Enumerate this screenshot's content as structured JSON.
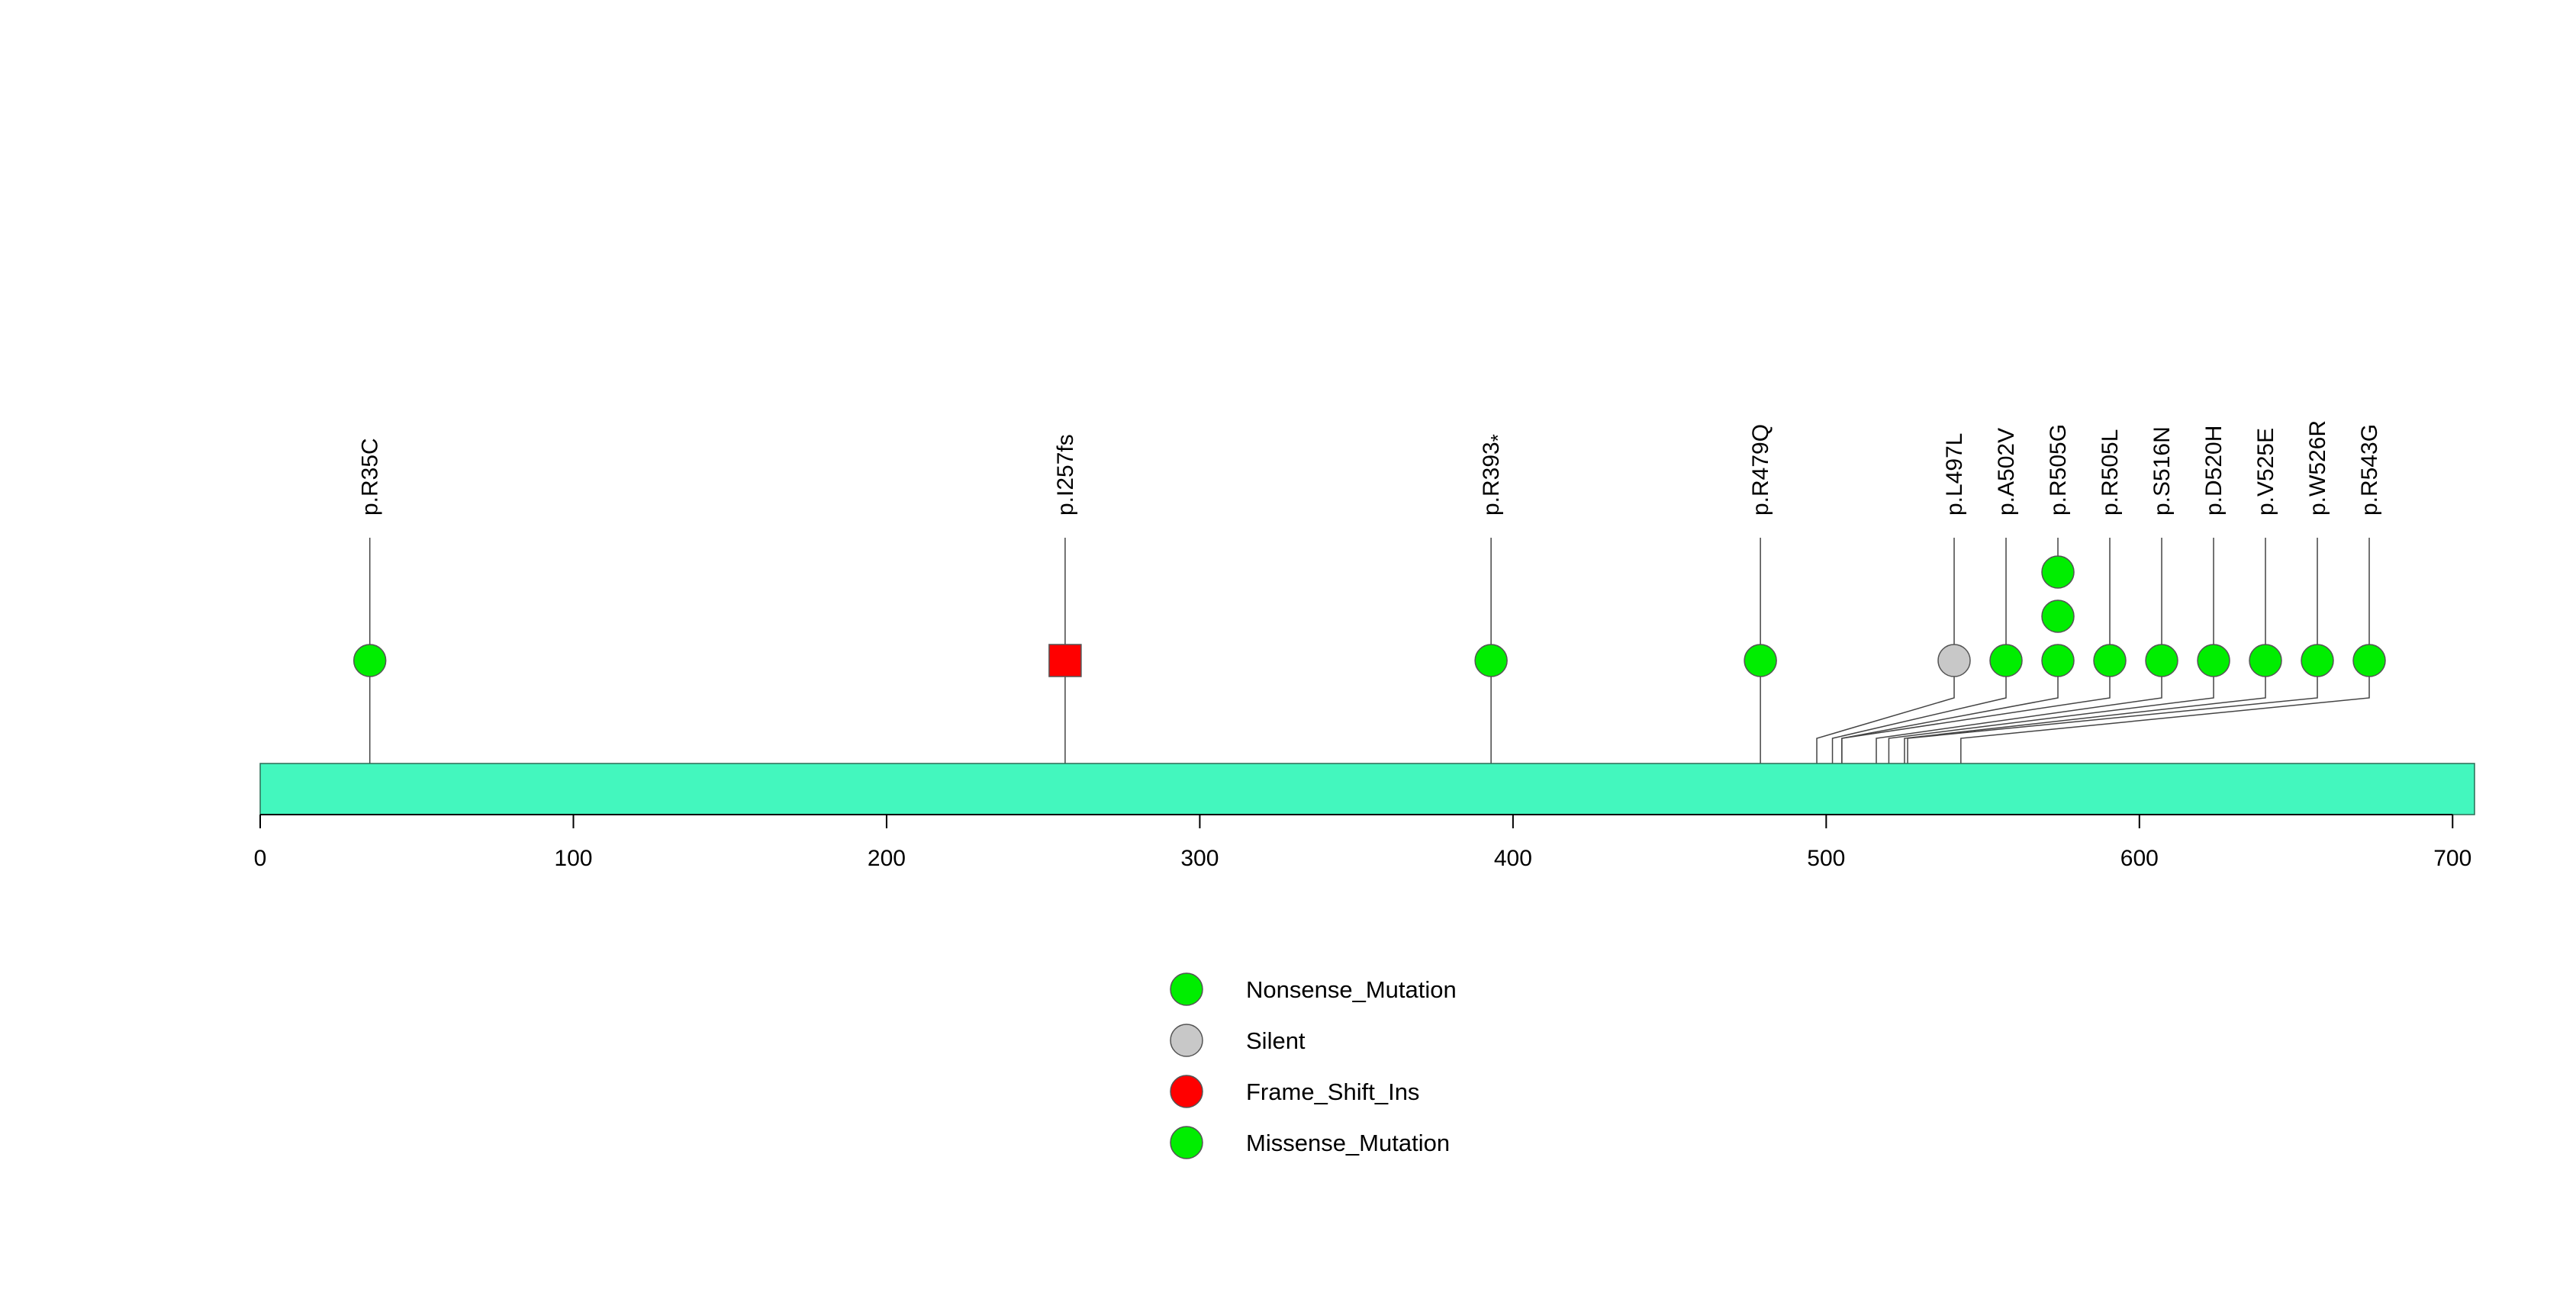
{
  "chart_data": {
    "type": "lollipop",
    "title": "",
    "xlabel": "",
    "ylabel": "",
    "protein_length": 707,
    "xlim": [
      0,
      707
    ],
    "x_ticks": [
      0,
      100,
      200,
      300,
      400,
      500,
      600,
      700
    ],
    "x_tick_labels": [
      "0",
      "100",
      "200",
      "300",
      "400",
      "500",
      "600",
      "700"
    ],
    "domain_color": "#43F7BE",
    "mutations": [
      {
        "label": "p.R35C",
        "position": 35,
        "type": "Missense_Mutation",
        "count": 1,
        "shape": "circle",
        "color": "#00EE00"
      },
      {
        "label": "p.I257fs",
        "position": 257,
        "type": "Frame_Shift_Ins",
        "count": 1,
        "shape": "square",
        "color": "#FF0000"
      },
      {
        "label": "p.R393",
        "suffix": "*",
        "position": 393,
        "type": "Nonsense_Mutation",
        "count": 1,
        "shape": "circle",
        "color": "#00EE00"
      },
      {
        "label": "p.R479Q",
        "position": 479,
        "type": "Missense_Mutation",
        "count": 1,
        "shape": "circle",
        "color": "#00EE00"
      },
      {
        "label": "p.L497L",
        "position": 497,
        "type": "Silent",
        "count": 1,
        "shape": "circle",
        "color": "#C8C8C8"
      },
      {
        "label": "p.A502V",
        "position": 502,
        "type": "Missense_Mutation",
        "count": 1,
        "shape": "circle",
        "color": "#00EE00"
      },
      {
        "label": "p.R505G",
        "position": 505,
        "type": "Missense_Mutation",
        "count": 3,
        "shape": "circle",
        "color": "#00EE00"
      },
      {
        "label": "p.R505L",
        "position": 505,
        "type": "Missense_Mutation",
        "count": 1,
        "shape": "circle",
        "color": "#00EE00"
      },
      {
        "label": "p.S516N",
        "position": 516,
        "type": "Missense_Mutation",
        "count": 1,
        "shape": "circle",
        "color": "#00EE00"
      },
      {
        "label": "p.D520H",
        "position": 520,
        "type": "Missense_Mutation",
        "count": 1,
        "shape": "circle",
        "color": "#00EE00"
      },
      {
        "label": "p.V525E",
        "position": 525,
        "type": "Missense_Mutation",
        "count": 1,
        "shape": "circle",
        "color": "#00EE00"
      },
      {
        "label": "p.W526R",
        "position": 526,
        "type": "Missense_Mutation",
        "count": 1,
        "shape": "circle",
        "color": "#00EE00"
      },
      {
        "label": "p.R543G",
        "position": 543,
        "type": "Missense_Mutation",
        "count": 1,
        "shape": "circle",
        "color": "#00EE00"
      }
    ],
    "legend": {
      "placement": "bottom-center",
      "entries": [
        {
          "label": "Nonsense_Mutation",
          "color": "#00EE00"
        },
        {
          "label": "Silent",
          "color": "#C8C8C8"
        },
        {
          "label": "Frame_Shift_Ins",
          "color": "#FF0000"
        },
        {
          "label": "Missense_Mutation",
          "color": "#00EE00"
        }
      ]
    }
  }
}
